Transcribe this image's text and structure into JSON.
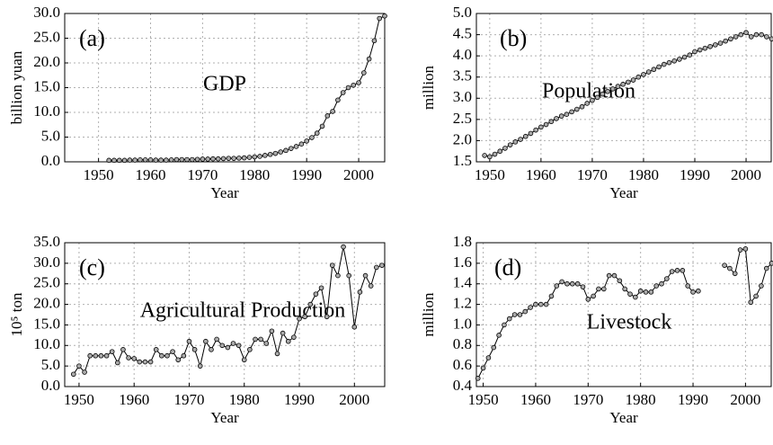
{
  "chart_data": [
    {
      "type": "line",
      "ylabel": "billion yuan",
      "xlabel": "Year",
      "annotations": [
        "(a)",
        "GDP"
      ],
      "color": "#000000",
      "marker_color": "#aaaaaa",
      "grid": true,
      "xlim": [
        1943.5,
        2005
      ],
      "xticks": [
        1950,
        1960,
        1970,
        1980,
        1990,
        2000
      ],
      "ylim": [
        0,
        30
      ],
      "yticks": [
        {
          "value": 0,
          "label": "0.0"
        },
        {
          "value": 5,
          "label": "5.0"
        },
        {
          "value": 10,
          "label": "10.0"
        },
        {
          "value": 15,
          "label": "15.0"
        },
        {
          "value": 20,
          "label": "20.0"
        },
        {
          "value": 25,
          "label": "25.0"
        },
        {
          "value": 30,
          "label": "30.0"
        }
      ],
      "x": [
        1952,
        1953,
        1954,
        1955,
        1956,
        1957,
        1958,
        1959,
        1960,
        1961,
        1962,
        1963,
        1964,
        1965,
        1966,
        1967,
        1968,
        1969,
        1970,
        1971,
        1972,
        1973,
        1974,
        1975,
        1976,
        1977,
        1978,
        1979,
        1980,
        1981,
        1982,
        1983,
        1984,
        1985,
        1986,
        1987,
        1988,
        1989,
        1990,
        1991,
        1992,
        1993,
        1994,
        1995,
        1996,
        1997,
        1998,
        1999,
        2000,
        2001,
        2002,
        2003,
        2004,
        2005
      ],
      "values": [
        0.3,
        0.3,
        0.3,
        0.3,
        0.35,
        0.35,
        0.4,
        0.4,
        0.4,
        0.35,
        0.35,
        0.35,
        0.4,
        0.45,
        0.45,
        0.45,
        0.45,
        0.5,
        0.55,
        0.55,
        0.6,
        0.6,
        0.65,
        0.7,
        0.7,
        0.75,
        0.8,
        0.9,
        1.0,
        1.1,
        1.3,
        1.5,
        1.7,
        2.0,
        2.3,
        2.7,
        3.1,
        3.6,
        4.2,
        4.9,
        5.8,
        7.2,
        9.3,
        10.2,
        12.5,
        14.0,
        15.0,
        15.5,
        16.0,
        18.0,
        20.8,
        24.5,
        29.0,
        29.5
      ]
    },
    {
      "type": "line",
      "ylabel": "million",
      "xlabel": "Year",
      "annotations": [
        "(b)",
        "Population"
      ],
      "color": "#000000",
      "marker_color": "#aaaaaa",
      "grid": true,
      "xlim": [
        1947.4,
        2004.9
      ],
      "xticks": [
        1950,
        1960,
        1970,
        1980,
        1990,
        2000
      ],
      "ylim": [
        1.5,
        5
      ],
      "yticks": [
        1.5,
        {
          "value": 2,
          "label": "2.0"
        },
        2.5,
        {
          "value": 3,
          "label": "3.0"
        },
        3.5,
        {
          "value": 4,
          "label": "4.0"
        },
        4.5,
        {
          "value": 5,
          "label": "5.0"
        }
      ],
      "x": [
        1949,
        1950,
        1951,
        1952,
        1953,
        1954,
        1955,
        1956,
        1957,
        1958,
        1959,
        1960,
        1961,
        1962,
        1963,
        1964,
        1965,
        1966,
        1967,
        1968,
        1969,
        1970,
        1971,
        1972,
        1973,
        1974,
        1975,
        1976,
        1977,
        1978,
        1979,
        1980,
        1981,
        1982,
        1983,
        1984,
        1985,
        1986,
        1987,
        1988,
        1989,
        1990,
        1991,
        1992,
        1993,
        1994,
        1995,
        1996,
        1997,
        1998,
        1999,
        2000,
        2001,
        2002,
        2003,
        2004,
        2005
      ],
      "values": [
        1.65,
        1.62,
        1.68,
        1.75,
        1.82,
        1.9,
        1.97,
        2.03,
        2.1,
        2.17,
        2.25,
        2.32,
        2.38,
        2.45,
        2.52,
        2.58,
        2.62,
        2.68,
        2.74,
        2.8,
        2.88,
        2.95,
        3.02,
        3.1,
        3.16,
        3.22,
        3.28,
        3.33,
        3.38,
        3.43,
        3.5,
        3.56,
        3.62,
        3.68,
        3.74,
        3.8,
        3.84,
        3.88,
        3.92,
        3.97,
        4.02,
        4.1,
        4.14,
        4.18,
        4.22,
        4.26,
        4.3,
        4.35,
        4.4,
        4.45,
        4.5,
        4.55,
        4.45,
        4.5,
        4.5,
        4.45,
        4.4
      ]
    },
    {
      "type": "line",
      "ylabel": "10⁵ ton",
      "xlabel": "Year",
      "annotations": [
        "(c)",
        "Agricultural Production"
      ],
      "color": "#000000",
      "marker_color": "#aaaaaa",
      "grid": true,
      "xlim": [
        1947.4,
        2005.5
      ],
      "xticks": [
        1950,
        1960,
        1970,
        1980,
        1990,
        2000
      ],
      "ylim": [
        0,
        35
      ],
      "yticks": [
        {
          "value": 0,
          "label": "0.0"
        },
        {
          "value": 5,
          "label": "5.0"
        },
        {
          "value": 10,
          "label": "10.0"
        },
        {
          "value": 15,
          "label": "15.0"
        },
        {
          "value": 20,
          "label": "20.0"
        },
        {
          "value": 25,
          "label": "25.0"
        },
        {
          "value": 30,
          "label": "30.0"
        },
        {
          "value": 35,
          "label": "35.0"
        }
      ],
      "x": [
        1949,
        1950,
        1951,
        1952,
        1953,
        1954,
        1955,
        1956,
        1957,
        1958,
        1959,
        1960,
        1961,
        1962,
        1963,
        1964,
        1965,
        1966,
        1967,
        1968,
        1969,
        1970,
        1971,
        1972,
        1973,
        1974,
        1975,
        1976,
        1977,
        1978,
        1979,
        1980,
        1981,
        1982,
        1983,
        1984,
        1985,
        1986,
        1987,
        1988,
        1989,
        1990,
        1991,
        1992,
        1993,
        1994,
        1995,
        1996,
        1997,
        1998,
        1999,
        2000,
        2001,
        2002,
        2003,
        2004,
        2005
      ],
      "values": [
        3,
        5,
        3.5,
        7.5,
        7.5,
        7.5,
        7.5,
        8.5,
        5.8,
        9,
        7,
        6.8,
        6,
        6,
        6,
        9,
        7.5,
        7.5,
        8.5,
        6.5,
        7.5,
        11,
        9,
        5,
        11,
        9,
        11.5,
        10,
        9.5,
        10.5,
        10,
        6.5,
        9,
        11.5,
        11.5,
        10.5,
        13.5,
        8,
        13,
        11,
        12,
        16.5,
        17,
        20,
        22.5,
        24,
        17,
        29.5,
        27,
        34,
        27,
        14.5,
        23,
        27,
        24.5,
        29,
        29.5
      ]
    },
    {
      "type": "line",
      "ylabel": "million",
      "xlabel": "Year",
      "annotations": [
        "(d)",
        "Livestock"
      ],
      "color": "#000000",
      "marker_color": "#aaaaaa",
      "grid": true,
      "xlim": [
        1948.7,
        2004.9
      ],
      "xticks": [
        1950,
        1960,
        1970,
        1980,
        1990,
        2000
      ],
      "ylim": [
        0.4,
        1.8
      ],
      "yticks": [
        0.4,
        0.6,
        0.8,
        {
          "value": 1,
          "label": "1.0"
        },
        1.2,
        1.4,
        1.6,
        1.8
      ],
      "x": [
        1949,
        1950,
        1951,
        1952,
        1953,
        1954,
        1955,
        1956,
        1957,
        1958,
        1959,
        1960,
        1961,
        1962,
        1963,
        1964,
        1965,
        1966,
        1967,
        1968,
        1969,
        1970,
        1971,
        1972,
        1973,
        1974,
        1975,
        1976,
        1977,
        1978,
        1979,
        1980,
        1981,
        1982,
        1983,
        1984,
        1985,
        1986,
        1987,
        1988,
        1989,
        1990,
        1991,
        1992,
        1993,
        1994,
        1995,
        1996,
        1997,
        1998,
        1999,
        2000,
        2001,
        2002,
        2003,
        2004,
        2005
      ],
      "values": [
        0.48,
        0.58,
        0.68,
        0.78,
        0.9,
        1.0,
        1.06,
        1.1,
        1.1,
        1.13,
        1.17,
        1.2,
        1.2,
        1.2,
        1.28,
        1.38,
        1.42,
        1.4,
        1.4,
        1.4,
        1.37,
        1.25,
        1.28,
        1.35,
        1.35,
        1.48,
        1.48,
        1.43,
        1.35,
        1.3,
        1.27,
        1.33,
        1.32,
        1.32,
        1.38,
        1.4,
        1.45,
        1.52,
        1.53,
        1.53,
        1.38,
        1.32,
        1.33,
        null,
        null,
        null,
        null,
        1.58,
        1.55,
        1.5,
        1.73,
        1.74,
        1.22,
        1.28,
        1.38,
        1.55,
        1.6
      ]
    }
  ]
}
